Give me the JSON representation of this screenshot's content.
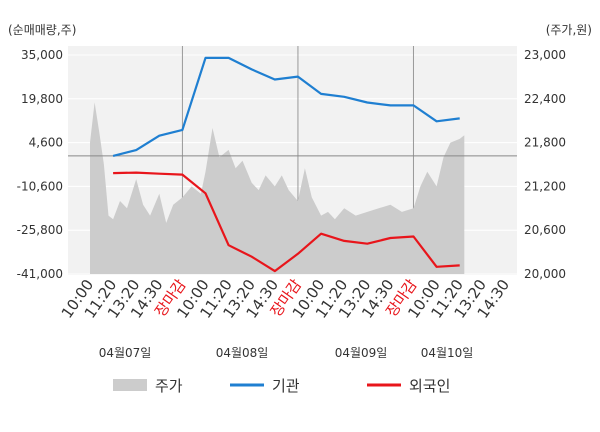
{
  "colors": {
    "price_fill": "#cccccc",
    "institution": "#1f7fd1",
    "foreign": "#e8151b",
    "session_close_label": "#e8151b",
    "axis_text": "#333333",
    "grid": "#ffffff",
    "plot_bg": "#f2f2f2"
  },
  "chart_data": {
    "type": "line",
    "left_axis_unit": "(순매매량,주)",
    "right_axis_unit": "(주가,원)",
    "left_ticks": [
      "35,000",
      "19,800",
      "4,600",
      "-10,600",
      "-25,800",
      "-41,000"
    ],
    "right_ticks": [
      "23,000",
      "22,400",
      "21,800",
      "21,200",
      "20,600",
      "20,000"
    ],
    "ylim_left": [
      -41000,
      35000
    ],
    "ylim_right": [
      20000,
      23000
    ],
    "reference_line_left": 0,
    "grid": true,
    "x_tick_labels": [
      "10:00",
      "11:20",
      "13:20",
      "14:30",
      "장마감",
      "10:00",
      "11:20",
      "13:20",
      "14:30",
      "장마감",
      "10:00",
      "11:20",
      "13:20",
      "14:30",
      "장마감",
      "10:00",
      "11:20",
      "13:20",
      "14:30"
    ],
    "x_tick_highlight": [
      false,
      false,
      false,
      false,
      true,
      false,
      false,
      false,
      false,
      true,
      false,
      false,
      false,
      false,
      true,
      false,
      false,
      false,
      false
    ],
    "dates": [
      "04월07일",
      "04월08일",
      "04월09일",
      "04월10일"
    ],
    "legend": [
      "주가",
      "기관",
      "외국인"
    ],
    "series": [
      {
        "name": "기관",
        "axis": "left",
        "x": [
          1,
          2,
          3,
          4,
          5,
          6,
          7,
          8,
          9,
          10,
          11,
          12,
          13,
          14,
          15,
          16,
          17
        ],
        "values": [
          0,
          2000,
          7000,
          9000,
          34000,
          34000,
          30000,
          26500,
          27500,
          21500,
          20500,
          18500,
          17500,
          17500,
          12000,
          13000,
          null
        ]
      },
      {
        "name": "외국인",
        "axis": "left",
        "x": [
          1,
          2,
          3,
          4,
          5,
          6,
          7,
          8,
          9,
          10,
          11,
          12,
          13,
          14,
          15,
          16,
          17
        ],
        "values": [
          -6000,
          -5800,
          -6200,
          -6500,
          -13000,
          -31000,
          -35000,
          -40000,
          -34000,
          -27000,
          -29500,
          -30500,
          -28500,
          -28000,
          -38500,
          -38000,
          null
        ]
      },
      {
        "name": "주가",
        "axis": "right",
        "x": [
          0.0,
          0.2,
          0.4,
          0.6,
          0.8,
          1.0,
          1.3,
          1.6,
          2.0,
          2.3,
          2.6,
          3.0,
          3.3,
          3.6,
          4.0,
          4.4,
          4.8,
          5.0,
          5.3,
          5.6,
          6.0,
          6.3,
          6.6,
          7.0,
          7.3,
          7.6,
          8.0,
          8.3,
          8.6,
          9.0,
          9.3,
          9.6,
          10.0,
          10.3,
          10.6,
          11.0,
          11.5,
          12.0,
          12.5,
          13.0,
          13.5,
          14.0,
          14.3,
          14.6,
          15.0,
          15.3,
          15.6,
          16.0,
          16.2
        ],
        "values": [
          21800,
          22350,
          21950,
          21500,
          20800,
          20750,
          21000,
          20900,
          21300,
          20950,
          20800,
          21100,
          20700,
          20950,
          21050,
          21200,
          21100,
          21400,
          22000,
          21600,
          21700,
          21450,
          21550,
          21250,
          21150,
          21350,
          21200,
          21350,
          21150,
          21000,
          21450,
          21050,
          20800,
          20850,
          20750,
          20900,
          20800,
          20850,
          20900,
          20950,
          20850,
          20900,
          21200,
          21400,
          21200,
          21600,
          21800,
          21850,
          21900
        ]
      }
    ]
  }
}
